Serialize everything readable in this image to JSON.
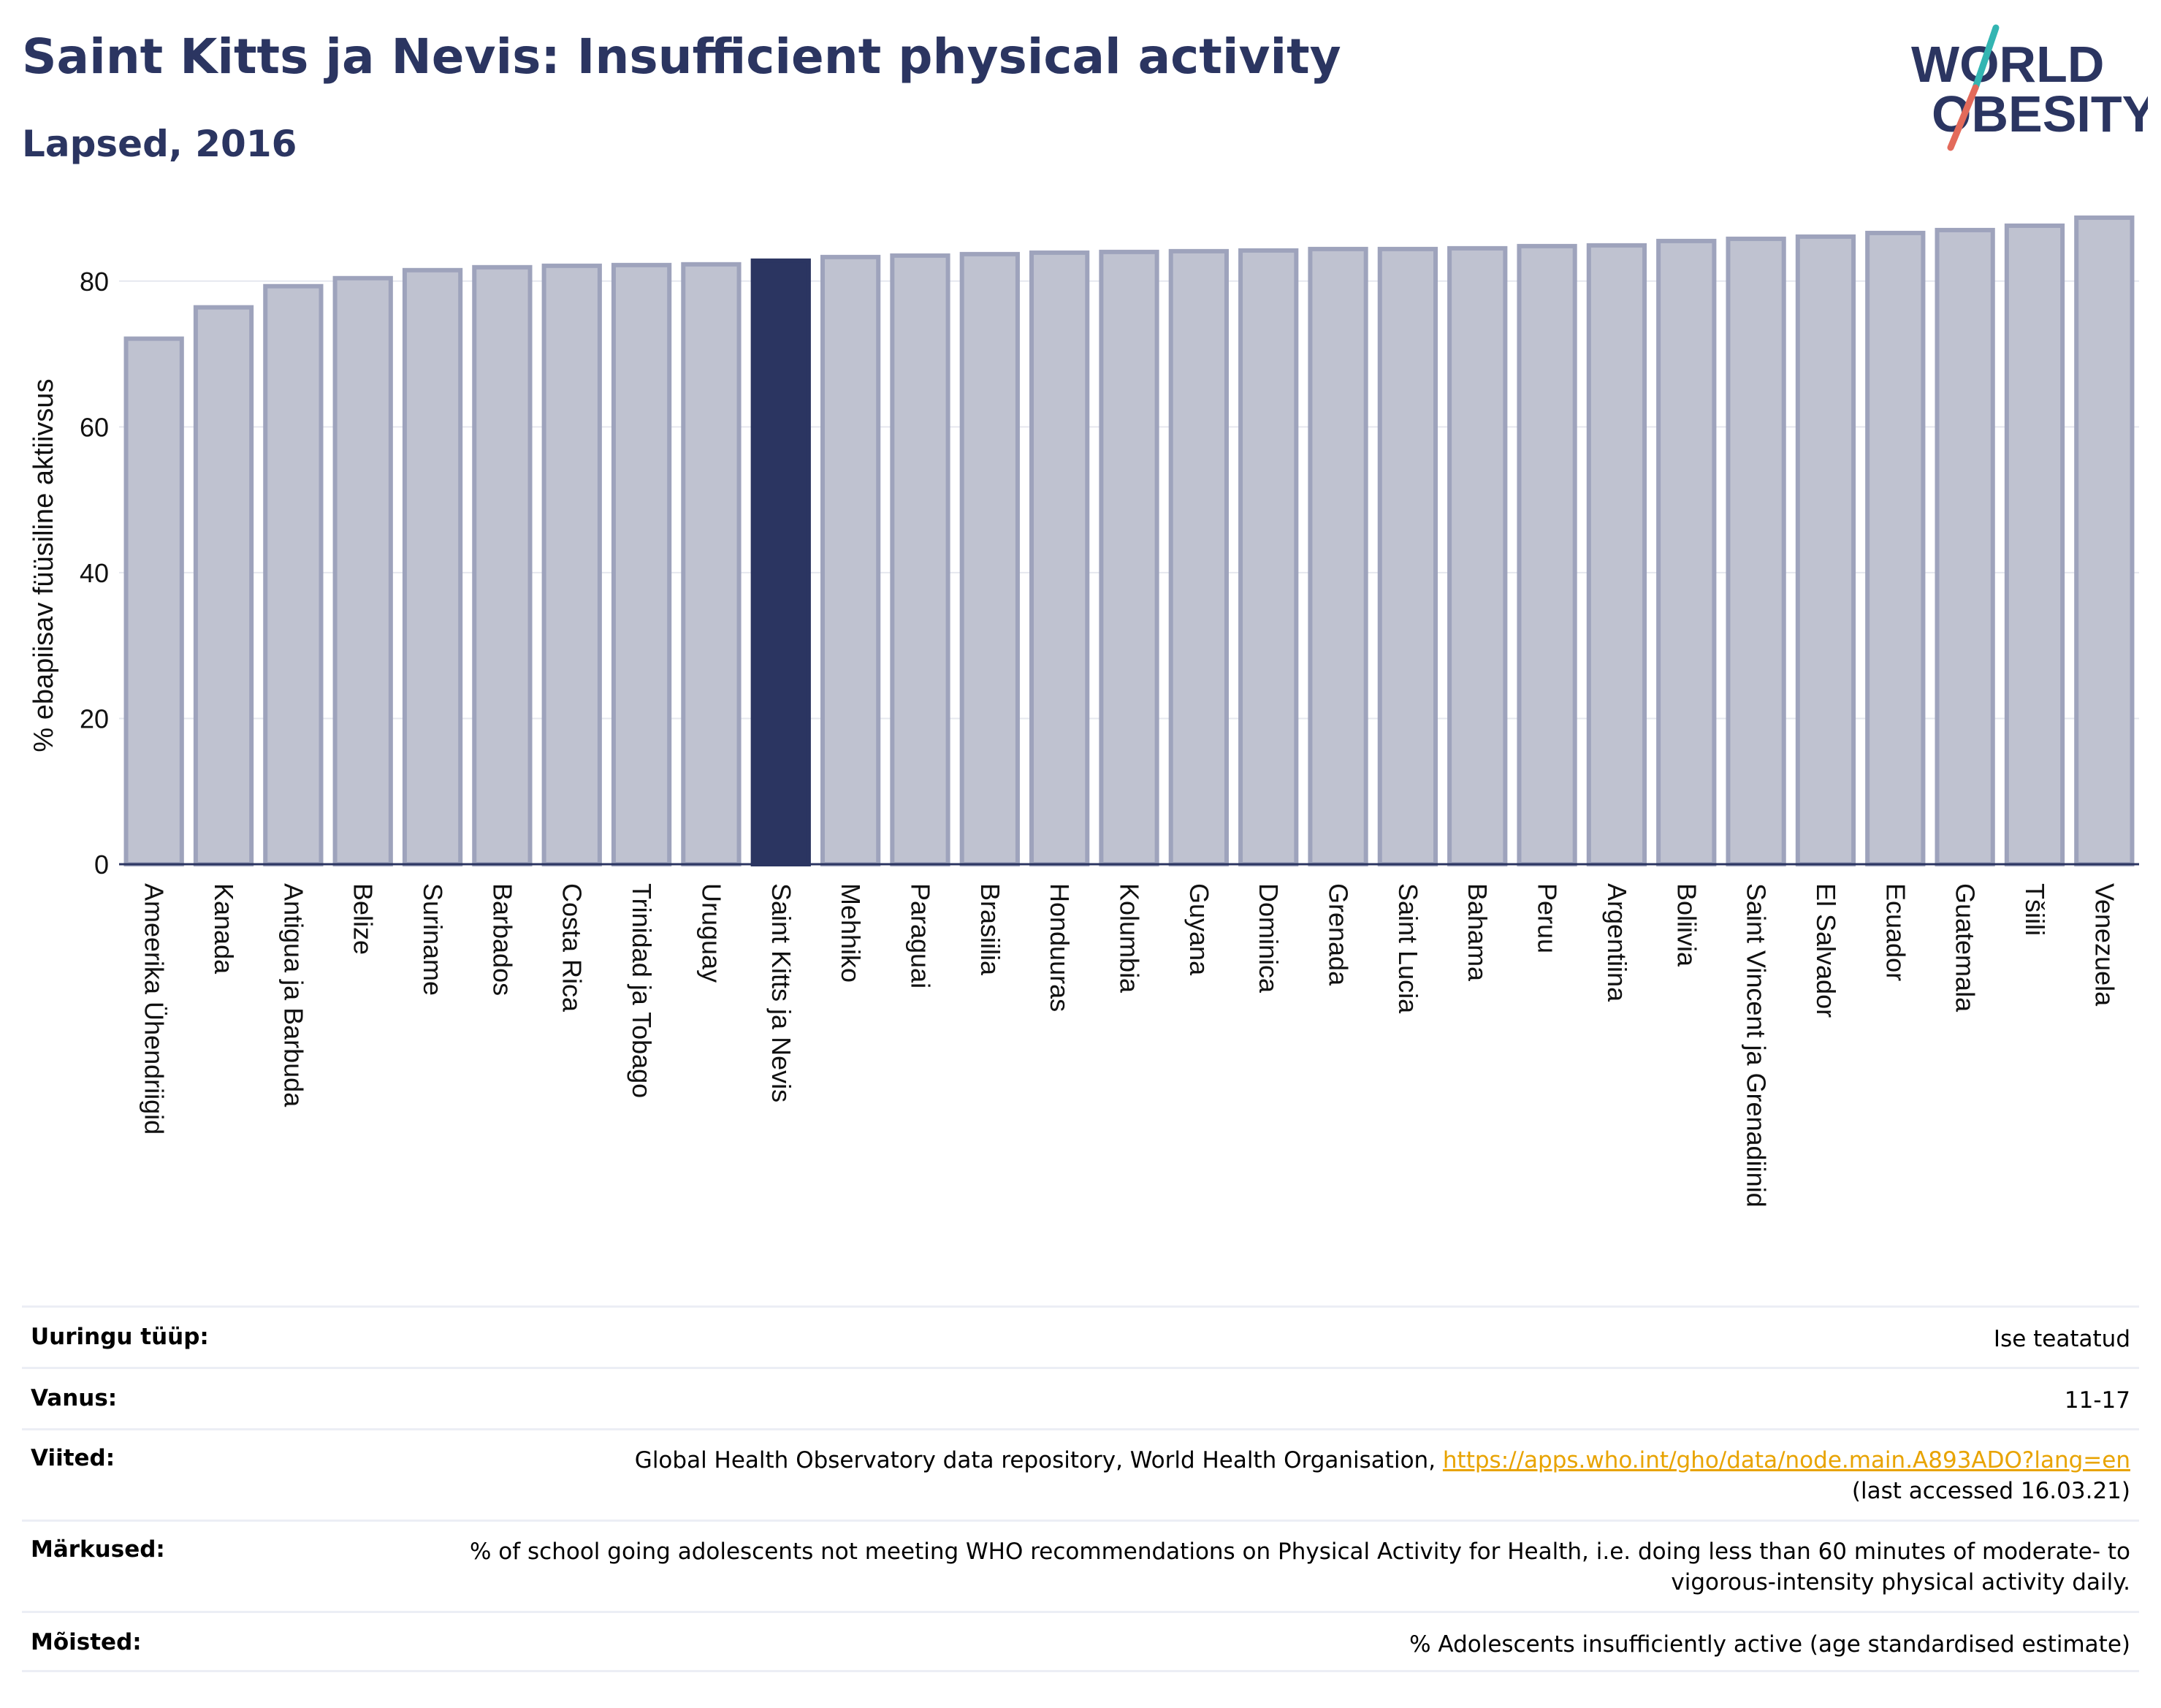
{
  "header": {
    "title": "Saint Kitts ja Nevis: Insufficient physical activity",
    "subtitle": "Lapsed, 2016",
    "logo_line1": "WORLD",
    "logo_line2": "OBESITY"
  },
  "chart_data": {
    "type": "bar",
    "ylabel": "% ebapiisav füüsiline aktiivsus",
    "ylim": [
      0,
      90
    ],
    "yticks": [
      0,
      20,
      40,
      60,
      80
    ],
    "grid": true,
    "highlight": "Saint Kitts ja Nevis",
    "categories": [
      "Ameerika Ühendriigid",
      "Kanada",
      "Antigua ja Barbuda",
      "Belize",
      "Suriname",
      "Barbados",
      "Costa Rica",
      "Trinidad ja Tobago",
      "Uruguay",
      "Saint Kitts ja Nevis",
      "Mehhiko",
      "Paraguai",
      "Brasiilia",
      "Honduuras",
      "Kolumbia",
      "Guyana",
      "Dominica",
      "Grenada",
      "Saint Lucia",
      "Bahama",
      "Peruu",
      "Argentiina",
      "Boliivia",
      "Saint Vincent ja Grenadiinid",
      "El Salvador",
      "Ecuador",
      "Guatemala",
      "Tšiili",
      "Venezuela"
    ],
    "values": [
      72.1,
      76.4,
      79.3,
      80.4,
      81.5,
      81.9,
      82.1,
      82.2,
      82.3,
      82.8,
      83.3,
      83.5,
      83.7,
      83.9,
      84.0,
      84.1,
      84.2,
      84.4,
      84.4,
      84.5,
      84.8,
      84.9,
      85.5,
      85.8,
      86.1,
      86.6,
      87.0,
      87.6,
      88.7
    ]
  },
  "colors": {
    "title": "#2b3561",
    "bar": "#bfc2d0",
    "bar_outline": "#9ea3bc",
    "highlight": "#2b3561",
    "logo_slash_top": "#33b5b2",
    "logo_slash_bottom": "#e36a5a",
    "link": "#e8a300"
  },
  "info": {
    "survey_label": "Uuringu tüüp:",
    "survey_value": "Ise teatatud",
    "age_label": "Vanus:",
    "age_value": "11-17",
    "refs_label": "Viited:",
    "refs_text": "Global Health Observatory data repository, World Health Organisation, ",
    "refs_link": "https://apps.who.int/gho/data/node.main.A893ADO?lang=en",
    "refs_note": "(last accessed 16.03.21)",
    "notes_label": "Märkused:",
    "notes_value": "% of school going adolescents not meeting WHO recommendations on Physical Activity for Health, i.e. doing less than 60 minutes of moderate- to vigorous-intensity physical activity daily.",
    "defs_label": "Mõisted:",
    "defs_value": "% Adolescents insufficiently active (age standardised estimate)"
  }
}
